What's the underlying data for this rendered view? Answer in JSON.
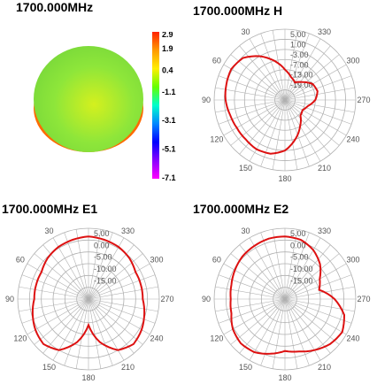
{
  "titles": {
    "pattern3d": "1700.000MHz",
    "h": "1700.000MHz  H",
    "e1": "1700.000MHz  E1",
    "e2": "1700.000MHz  E2"
  },
  "colorbar": {
    "ticks": [
      "2.9",
      "1.9",
      "0.4",
      "-1.1",
      "-3.1",
      "-5.1",
      "-7.1"
    ],
    "tick_values": [
      2.9,
      1.9,
      0.4,
      -1.1,
      -3.1,
      -5.1,
      -7.1
    ],
    "colors": [
      "#ff2200",
      "#ff9900",
      "#ffee00",
      "#66ff00",
      "#00ffcc",
      "#0088ff",
      "#0000ff",
      "#8800ff",
      "#ff00ff"
    ]
  },
  "pattern3d_colors": {
    "body": "#8ee63a",
    "center": "#d4f01e",
    "rim": "#ff6a00"
  },
  "chart_data": [
    {
      "type": "polar",
      "panel": "H",
      "radial_labels": [
        "5.00",
        "1.00",
        "-3.00",
        "-7.00",
        "-13.00",
        "-19.00"
      ],
      "angle_labels": [
        "30",
        "60",
        "90",
        "120",
        "150",
        "180",
        "210",
        "240",
        "270",
        "300",
        "330"
      ],
      "line_color": "#dd1111",
      "angles_deg": [
        0,
        15,
        30,
        45,
        60,
        75,
        90,
        105,
        120,
        135,
        150,
        165,
        180,
        195,
        210,
        225,
        240,
        255,
        270,
        285,
        300,
        315,
        330,
        345
      ],
      "values": [
        -13,
        -7,
        -3,
        0.5,
        1.5,
        1,
        0.5,
        -0.5,
        -1,
        -1,
        -0.5,
        -1,
        -3,
        -7,
        -13,
        -18,
        -19,
        -17,
        -13,
        -11,
        -12,
        -16,
        -19,
        -17
      ]
    },
    {
      "type": "polar",
      "panel": "E1",
      "radial_labels": [
        "5.00",
        "0.00",
        "-5.00",
        "-10.00",
        "-15.00"
      ],
      "angle_labels": [
        "30",
        "60",
        "90",
        "120",
        "150",
        "180",
        "210",
        "240",
        "270",
        "300",
        "330"
      ],
      "line_color": "#dd1111",
      "angles_deg": [
        0,
        15,
        30,
        45,
        60,
        75,
        90,
        105,
        120,
        135,
        150,
        165,
        180,
        195,
        210,
        225,
        240,
        255,
        270,
        285,
        300,
        315,
        330,
        345
      ],
      "values": [
        1.5,
        1,
        0.5,
        -0.5,
        -2,
        -2,
        -2,
        -0.5,
        1,
        2,
        0,
        -6,
        -14,
        -6,
        0,
        2,
        1,
        -0.5,
        -2,
        -2,
        -2,
        -0.5,
        0.5,
        1
      ]
    },
    {
      "type": "polar",
      "panel": "E2",
      "radial_labels": [
        "5.00",
        "0.00",
        "-5.00",
        "-10.00",
        "-15.00"
      ],
      "angle_labels": [
        "30",
        "60",
        "90",
        "120",
        "150",
        "180",
        "210",
        "240",
        "270",
        "300",
        "330"
      ],
      "line_color": "#dd1111",
      "angles_deg": [
        0,
        15,
        30,
        45,
        60,
        75,
        90,
        105,
        120,
        135,
        150,
        165,
        180,
        195,
        210,
        225,
        240,
        255,
        270,
        285,
        300,
        315,
        330,
        345
      ],
      "values": [
        1.5,
        1.5,
        1,
        0.5,
        -0.5,
        -1.5,
        -2,
        -1.5,
        0.5,
        1.5,
        1,
        -1,
        -3,
        -2,
        0,
        2,
        3,
        1,
        -4,
        -10,
        -8,
        -4,
        -1,
        1
      ]
    }
  ]
}
